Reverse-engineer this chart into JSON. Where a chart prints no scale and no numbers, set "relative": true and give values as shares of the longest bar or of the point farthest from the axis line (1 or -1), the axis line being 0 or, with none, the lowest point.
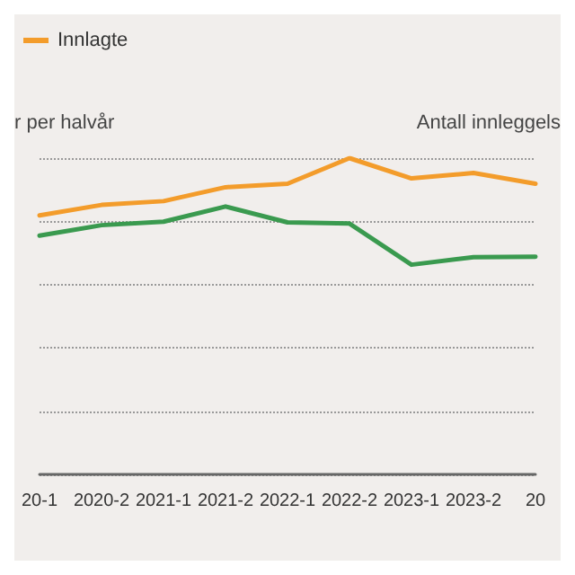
{
  "chart_data": {
    "type": "line",
    "relative": true,
    "ylabel": "r per halvår",
    "y2label": "Antall innleggels",
    "categories": [
      "20-1",
      "2020-2",
      "2021-1",
      "2021-2",
      "2022-1",
      "2022-2",
      "2023-1",
      "2023-2",
      "20"
    ],
    "series": [
      {
        "name": "Innlagte",
        "color": "#f39c2b",
        "values": [
          0.819,
          0.852,
          0.864,
          0.908,
          0.919,
          1,
          0.936,
          0.953,
          0.919
        ]
      },
      {
        "color": "#3a9a4f",
        "values": [
          0.755,
          0.788,
          0.799,
          0.847,
          0.797,
          0.793,
          0.663,
          0.687,
          0.688
        ]
      }
    ],
    "grid": "y",
    "legend": "top left",
    "marker": "none",
    "line_style": "solid"
  }
}
